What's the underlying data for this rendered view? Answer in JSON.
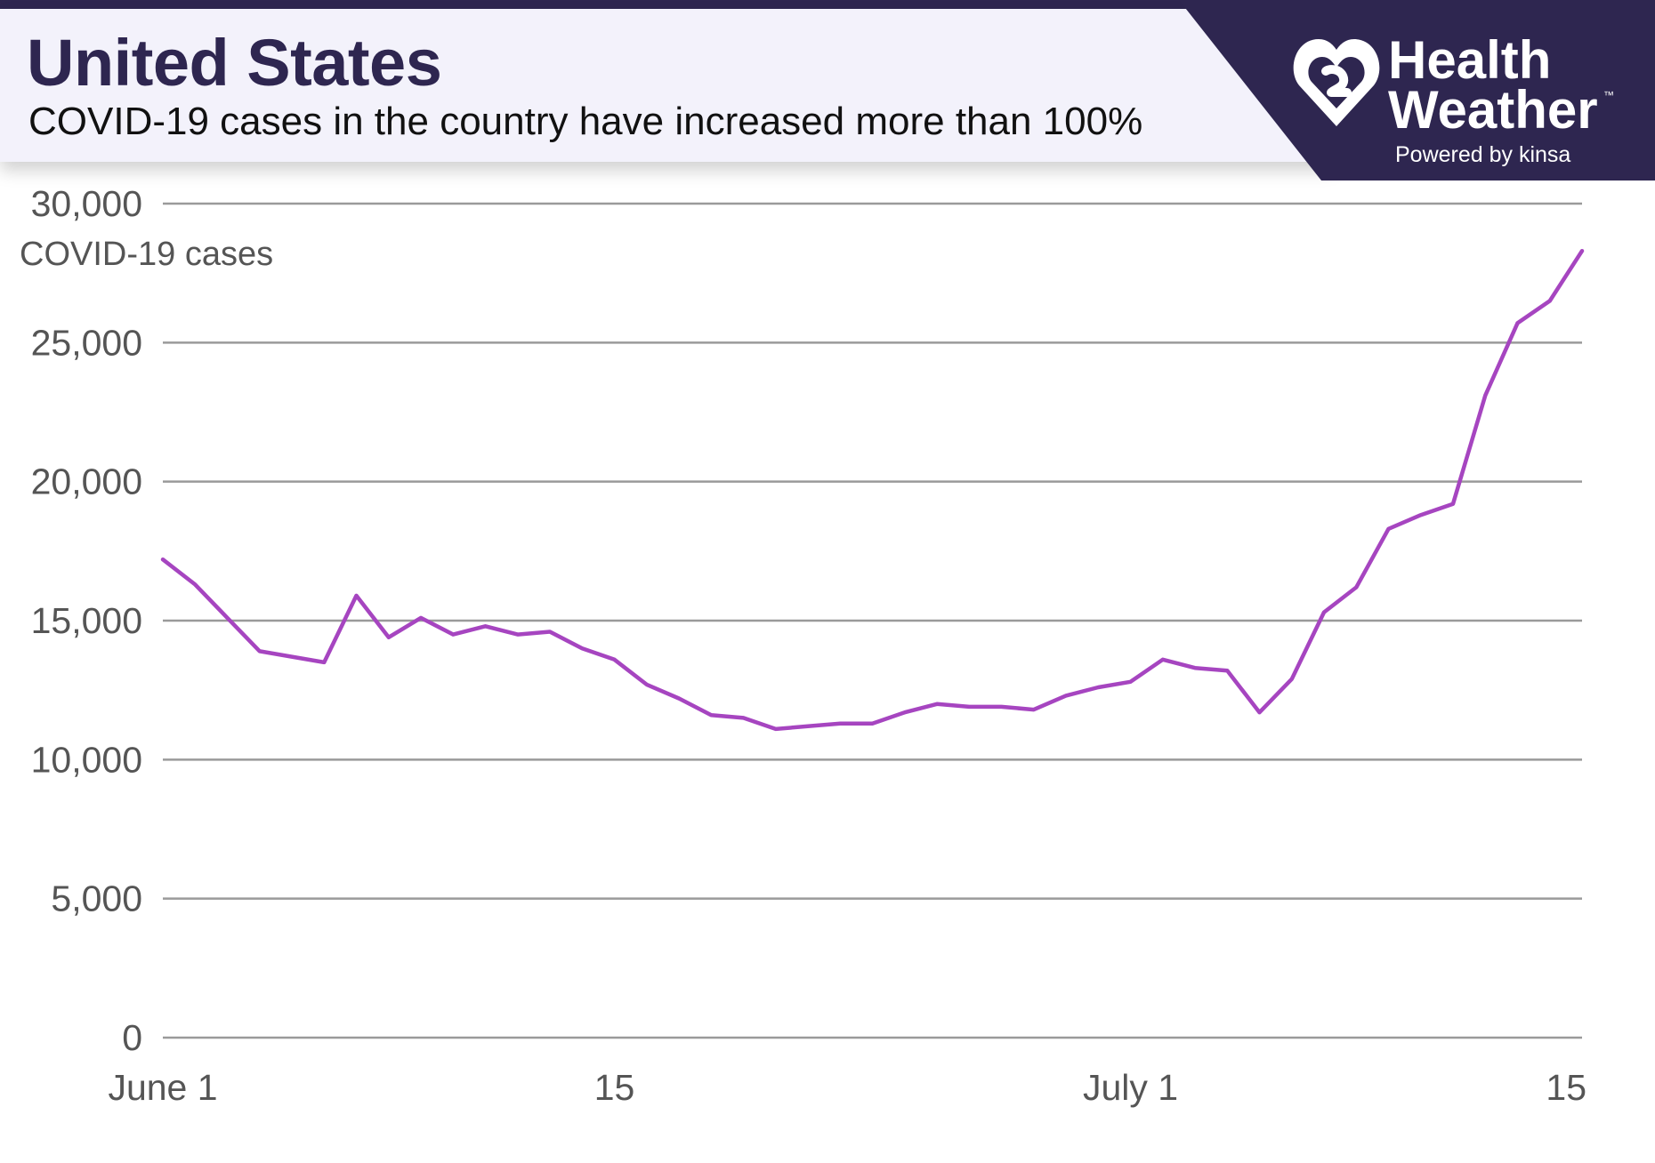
{
  "header": {
    "title": "United States",
    "subtitle": "COVID-19 cases in the country have increased more than 100%"
  },
  "brand": {
    "name_line1": "Health",
    "name_line2": "Weather",
    "trademark": "™",
    "powered_by": "Powered by kinsa",
    "panel_color": "#2e2650"
  },
  "chart_data": {
    "type": "line",
    "title": "United States",
    "ylabel": "COVID-19 cases",
    "xlabel": "",
    "ylim": [
      0,
      30000
    ],
    "y_ticks": [
      0,
      5000,
      10000,
      15000,
      20000,
      25000,
      30000
    ],
    "y_tick_labels": [
      "0",
      "5,000",
      "10,000",
      "15,000",
      "20,000",
      "25,000",
      "30,000"
    ],
    "x_ticks": [
      0,
      14,
      30,
      44
    ],
    "x_tick_labels": [
      "June 1",
      "15",
      "July 1",
      "15"
    ],
    "grid": true,
    "series": [
      {
        "name": "COVID-19 cases",
        "color": "#a645c0",
        "x": [
          0,
          1,
          2,
          3,
          4,
          5,
          6,
          7,
          8,
          9,
          10,
          11,
          12,
          13,
          14,
          15,
          16,
          17,
          18,
          19,
          20,
          21,
          22,
          23,
          24,
          25,
          26,
          27,
          28,
          29,
          30,
          31,
          32,
          33,
          34,
          35,
          36,
          37,
          38,
          39,
          40,
          41,
          42,
          43,
          44
        ],
        "values": [
          17200,
          16300,
          15100,
          13900,
          13700,
          13500,
          15900,
          14400,
          15100,
          14500,
          14800,
          14500,
          14600,
          14000,
          13600,
          12700,
          12200,
          11600,
          11500,
          11100,
          11200,
          11300,
          11300,
          11700,
          12000,
          11900,
          11900,
          11800,
          12300,
          12600,
          12800,
          13600,
          13300,
          13200,
          11700,
          12900,
          15300,
          16200,
          18300,
          18800,
          19200,
          23100,
          25700,
          26500,
          28300
        ]
      }
    ]
  }
}
